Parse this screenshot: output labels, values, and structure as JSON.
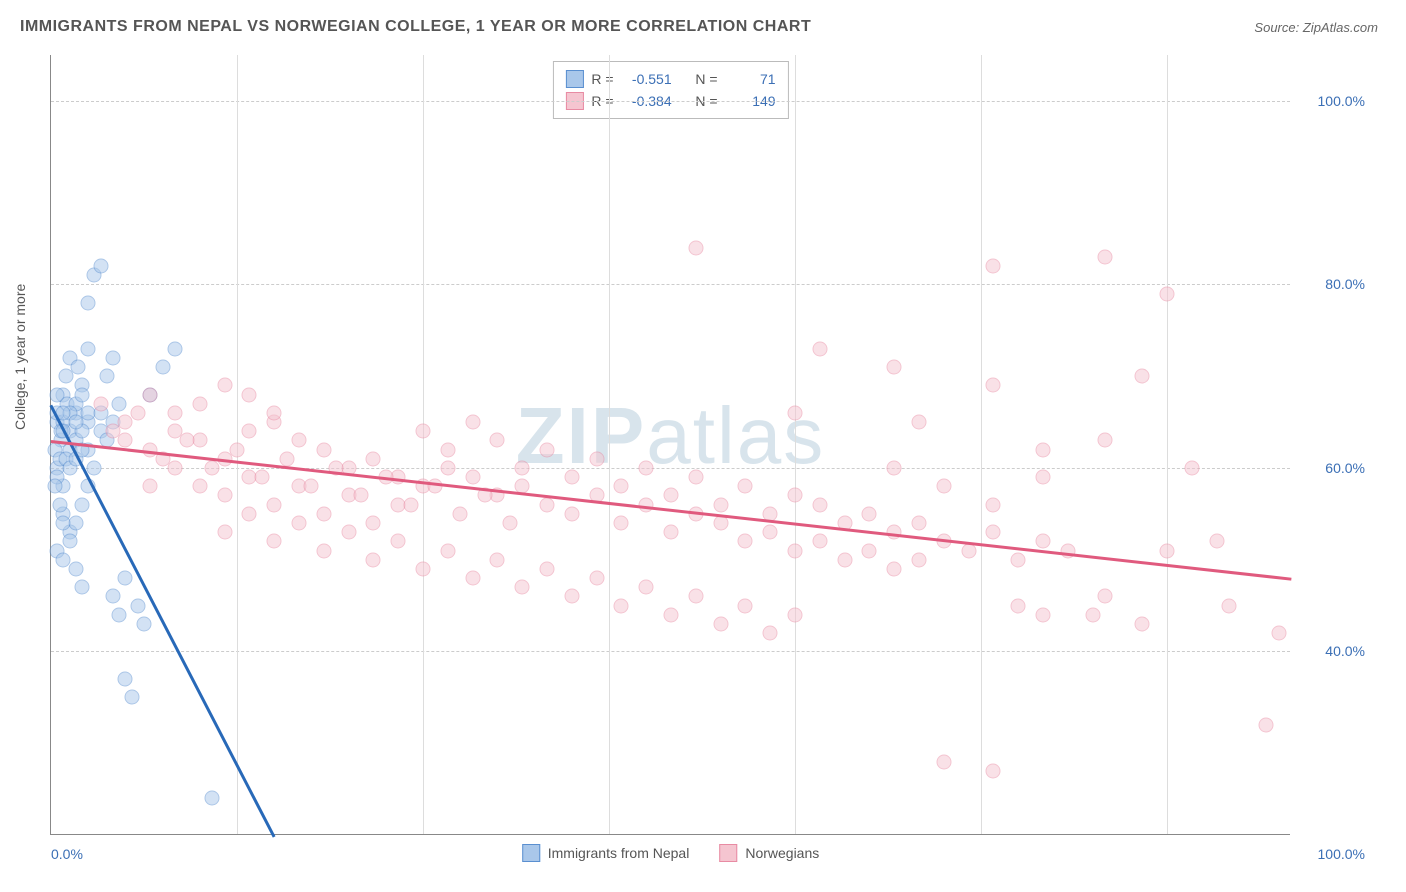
{
  "title": "IMMIGRANTS FROM NEPAL VS NORWEGIAN COLLEGE, 1 YEAR OR MORE CORRELATION CHART",
  "source_label": "Source:",
  "source_name": "ZipAtlas.com",
  "y_axis_title": "College, 1 year or more",
  "watermark_bold": "ZIP",
  "watermark_light": "atlas",
  "chart": {
    "type": "scatter",
    "background_color": "#ffffff",
    "grid_color": "#cccccc",
    "axis_color": "#888888",
    "label_color": "#3b6fb5",
    "xlim": [
      0,
      100
    ],
    "ylim": [
      20,
      105
    ],
    "y_ticks": [
      40,
      60,
      80,
      100
    ],
    "y_tick_labels": [
      "40.0%",
      "60.0%",
      "80.0%",
      "100.0%"
    ],
    "x_tick_left": "0.0%",
    "x_tick_right": "100.0%",
    "x_gridlines": [
      15,
      30,
      45,
      60,
      75,
      90
    ],
    "marker_size": 15,
    "marker_opacity": 0.5,
    "line_width": 2.5,
    "series": [
      {
        "name": "Immigrants from Nepal",
        "color_fill": "#a9c7ea",
        "color_stroke": "#5a8fd0",
        "line_color": "#2869b8",
        "R": "-0.551",
        "N": "71",
        "trend": {
          "x1": 0,
          "y1": 67,
          "x2": 18,
          "y2": 20
        },
        "points": [
          [
            0.5,
            65
          ],
          [
            0.8,
            63
          ],
          [
            1,
            68
          ],
          [
            1.2,
            70
          ],
          [
            1.5,
            72
          ],
          [
            0.5,
            60
          ],
          [
            1,
            58
          ],
          [
            1.5,
            64
          ],
          [
            2,
            66
          ],
          [
            2.5,
            69
          ],
          [
            0.3,
            62
          ],
          [
            0.7,
            61
          ],
          [
            1.3,
            67
          ],
          [
            2.2,
            71
          ],
          [
            3,
            73
          ],
          [
            3.5,
            81
          ],
          [
            4,
            82
          ],
          [
            3,
            78
          ],
          [
            4.5,
            70
          ],
          [
            5,
            72
          ],
          [
            1,
            55
          ],
          [
            1.5,
            53
          ],
          [
            2,
            54
          ],
          [
            2.5,
            56
          ],
          [
            3,
            58
          ],
          [
            0.5,
            51
          ],
          [
            1,
            50
          ],
          [
            1.5,
            52
          ],
          [
            2,
            49
          ],
          [
            2.5,
            47
          ],
          [
            5,
            46
          ],
          [
            5.5,
            44
          ],
          [
            6,
            48
          ],
          [
            3,
            62
          ],
          [
            3.5,
            60
          ],
          [
            4,
            64
          ],
          [
            4.5,
            63
          ],
          [
            5,
            65
          ],
          [
            5.5,
            67
          ],
          [
            8,
            68
          ],
          [
            9,
            71
          ],
          [
            10,
            73
          ],
          [
            6,
            37
          ],
          [
            6.5,
            35
          ],
          [
            7,
            45
          ],
          [
            7.5,
            43
          ],
          [
            2,
            67
          ],
          [
            2.5,
            68
          ],
          [
            3,
            65
          ],
          [
            1,
            65
          ],
          [
            1.5,
            62
          ],
          [
            0.8,
            64
          ],
          [
            0.5,
            59
          ],
          [
            1.2,
            61
          ],
          [
            0.3,
            58
          ],
          [
            0.7,
            56
          ],
          [
            1,
            54
          ],
          [
            0.5,
            66
          ],
          [
            1,
            64
          ],
          [
            1.5,
            66
          ],
          [
            2,
            63
          ],
          [
            2.5,
            64
          ],
          [
            3,
            66
          ],
          [
            0.5,
            68
          ],
          [
            1,
            66
          ],
          [
            1.5,
            60
          ],
          [
            2,
            61
          ],
          [
            2.5,
            62
          ],
          [
            13,
            24
          ],
          [
            4,
            66
          ],
          [
            2,
            65
          ]
        ]
      },
      {
        "name": "Norwegians",
        "color_fill": "#f5c5d0",
        "color_stroke": "#e88ba3",
        "line_color": "#e05a7e",
        "R": "-0.384",
        "N": "149",
        "trend": {
          "x1": 0,
          "y1": 63,
          "x2": 100,
          "y2": 48
        },
        "points": [
          [
            4,
            67
          ],
          [
            6,
            65
          ],
          [
            8,
            68
          ],
          [
            10,
            66
          ],
          [
            12,
            67
          ],
          [
            14,
            69
          ],
          [
            16,
            68
          ],
          [
            18,
            65
          ],
          [
            8,
            62
          ],
          [
            10,
            64
          ],
          [
            12,
            63
          ],
          [
            14,
            61
          ],
          [
            16,
            64
          ],
          [
            18,
            66
          ],
          [
            20,
            63
          ],
          [
            22,
            62
          ],
          [
            24,
            60
          ],
          [
            26,
            61
          ],
          [
            28,
            59
          ],
          [
            30,
            58
          ],
          [
            32,
            60
          ],
          [
            34,
            59
          ],
          [
            36,
            57
          ],
          [
            38,
            58
          ],
          [
            40,
            56
          ],
          [
            42,
            55
          ],
          [
            44,
            57
          ],
          [
            46,
            54
          ],
          [
            48,
            56
          ],
          [
            50,
            53
          ],
          [
            52,
            55
          ],
          [
            54,
            54
          ],
          [
            56,
            52
          ],
          [
            58,
            53
          ],
          [
            60,
            51
          ],
          [
            62,
            52
          ],
          [
            64,
            50
          ],
          [
            66,
            51
          ],
          [
            68,
            49
          ],
          [
            70,
            50
          ],
          [
            14,
            53
          ],
          [
            16,
            55
          ],
          [
            18,
            52
          ],
          [
            20,
            54
          ],
          [
            22,
            51
          ],
          [
            24,
            53
          ],
          [
            26,
            50
          ],
          [
            28,
            52
          ],
          [
            30,
            49
          ],
          [
            32,
            51
          ],
          [
            34,
            48
          ],
          [
            36,
            50
          ],
          [
            38,
            47
          ],
          [
            40,
            49
          ],
          [
            42,
            46
          ],
          [
            44,
            48
          ],
          [
            46,
            45
          ],
          [
            48,
            47
          ],
          [
            50,
            44
          ],
          [
            52,
            46
          ],
          [
            54,
            43
          ],
          [
            56,
            45
          ],
          [
            58,
            42
          ],
          [
            60,
            44
          ],
          [
            30,
            64
          ],
          [
            32,
            62
          ],
          [
            34,
            65
          ],
          [
            36,
            63
          ],
          [
            38,
            60
          ],
          [
            40,
            62
          ],
          [
            42,
            59
          ],
          [
            44,
            61
          ],
          [
            46,
            58
          ],
          [
            48,
            60
          ],
          [
            50,
            57
          ],
          [
            52,
            59
          ],
          [
            54,
            56
          ],
          [
            56,
            58
          ],
          [
            58,
            55
          ],
          [
            60,
            57
          ],
          [
            62,
            56
          ],
          [
            64,
            54
          ],
          [
            66,
            55
          ],
          [
            68,
            53
          ],
          [
            70,
            54
          ],
          [
            72,
            52
          ],
          [
            74,
            51
          ],
          [
            76,
            53
          ],
          [
            78,
            50
          ],
          [
            80,
            52
          ],
          [
            82,
            51
          ],
          [
            14,
            57
          ],
          [
            16,
            59
          ],
          [
            18,
            56
          ],
          [
            20,
            58
          ],
          [
            22,
            55
          ],
          [
            24,
            57
          ],
          [
            26,
            54
          ],
          [
            28,
            56
          ],
          [
            52,
            84
          ],
          [
            76,
            82
          ],
          [
            85,
            83
          ],
          [
            90,
            79
          ],
          [
            62,
            73
          ],
          [
            68,
            71
          ],
          [
            76,
            69
          ],
          [
            88,
            70
          ],
          [
            60,
            66
          ],
          [
            70,
            65
          ],
          [
            80,
            62
          ],
          [
            85,
            63
          ],
          [
            92,
            60
          ],
          [
            78,
            45
          ],
          [
            80,
            44
          ],
          [
            85,
            46
          ],
          [
            88,
            43
          ],
          [
            90,
            51
          ],
          [
            95,
            45
          ],
          [
            99,
            42
          ],
          [
            68,
            60
          ],
          [
            72,
            58
          ],
          [
            76,
            56
          ],
          [
            80,
            59
          ],
          [
            84,
            44
          ],
          [
            72,
            28
          ],
          [
            76,
            27
          ],
          [
            98,
            32
          ],
          [
            94,
            52
          ],
          [
            8,
            58
          ],
          [
            10,
            60
          ],
          [
            6,
            63
          ],
          [
            12,
            58
          ],
          [
            5,
            64
          ],
          [
            7,
            66
          ],
          [
            9,
            61
          ],
          [
            11,
            63
          ],
          [
            13,
            60
          ],
          [
            15,
            62
          ],
          [
            17,
            59
          ],
          [
            19,
            61
          ],
          [
            21,
            58
          ],
          [
            23,
            60
          ],
          [
            25,
            57
          ],
          [
            27,
            59
          ],
          [
            29,
            56
          ],
          [
            31,
            58
          ],
          [
            33,
            55
          ],
          [
            35,
            57
          ],
          [
            37,
            54
          ]
        ]
      }
    ]
  },
  "legend": {
    "bottom": [
      {
        "label": "Immigrants from Nepal"
      },
      {
        "label": "Norwegians"
      }
    ]
  }
}
